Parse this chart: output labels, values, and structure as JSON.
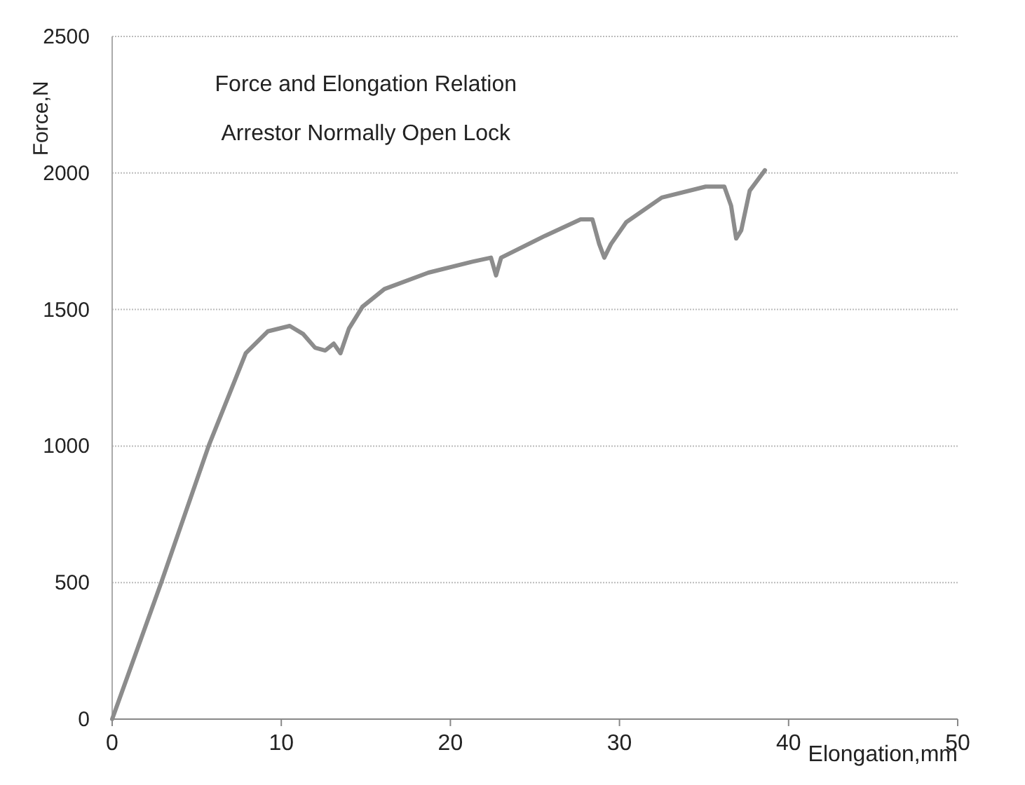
{
  "chart_data": {
    "type": "line",
    "title": "Force and Elongation Relation",
    "subtitle": "Arrestor  Normally Open Lock",
    "xlabel": "Elongation,mm",
    "ylabel": "Force,N",
    "xlim": [
      0,
      50
    ],
    "xticks": [
      0,
      10,
      20,
      30,
      40,
      50
    ],
    "ylim": [
      0,
      2500
    ],
    "yticks": [
      0,
      500,
      1000,
      1500,
      2000,
      2500
    ],
    "grid": "y",
    "marker": "none",
    "line_style": "solid",
    "series": [
      {
        "color": "#8c8c8c",
        "x": [
          0,
          2.9,
          5.7,
          7.9,
          9.2,
          10.5,
          11.3,
          12,
          12.6,
          13.1,
          13.5,
          14,
          14.8,
          16.1,
          18.7,
          21.3,
          22.4,
          22.7,
          23,
          25.6,
          27.7,
          28.4,
          28.8,
          29.1,
          29.5,
          30.4,
          32.5,
          35.1,
          36.2,
          36.6,
          36.9,
          37.2,
          37.7,
          38.6
        ],
        "values": [
          0,
          500,
          1000,
          1340,
          1420,
          1440,
          1410,
          1360,
          1350,
          1375,
          1340,
          1430,
          1510,
          1575,
          1635,
          1675,
          1690,
          1625,
          1690,
          1770,
          1830,
          1830,
          1740,
          1690,
          1740,
          1820,
          1910,
          1950,
          1950,
          1880,
          1760,
          1790,
          1935,
          2010
        ]
      }
    ]
  }
}
